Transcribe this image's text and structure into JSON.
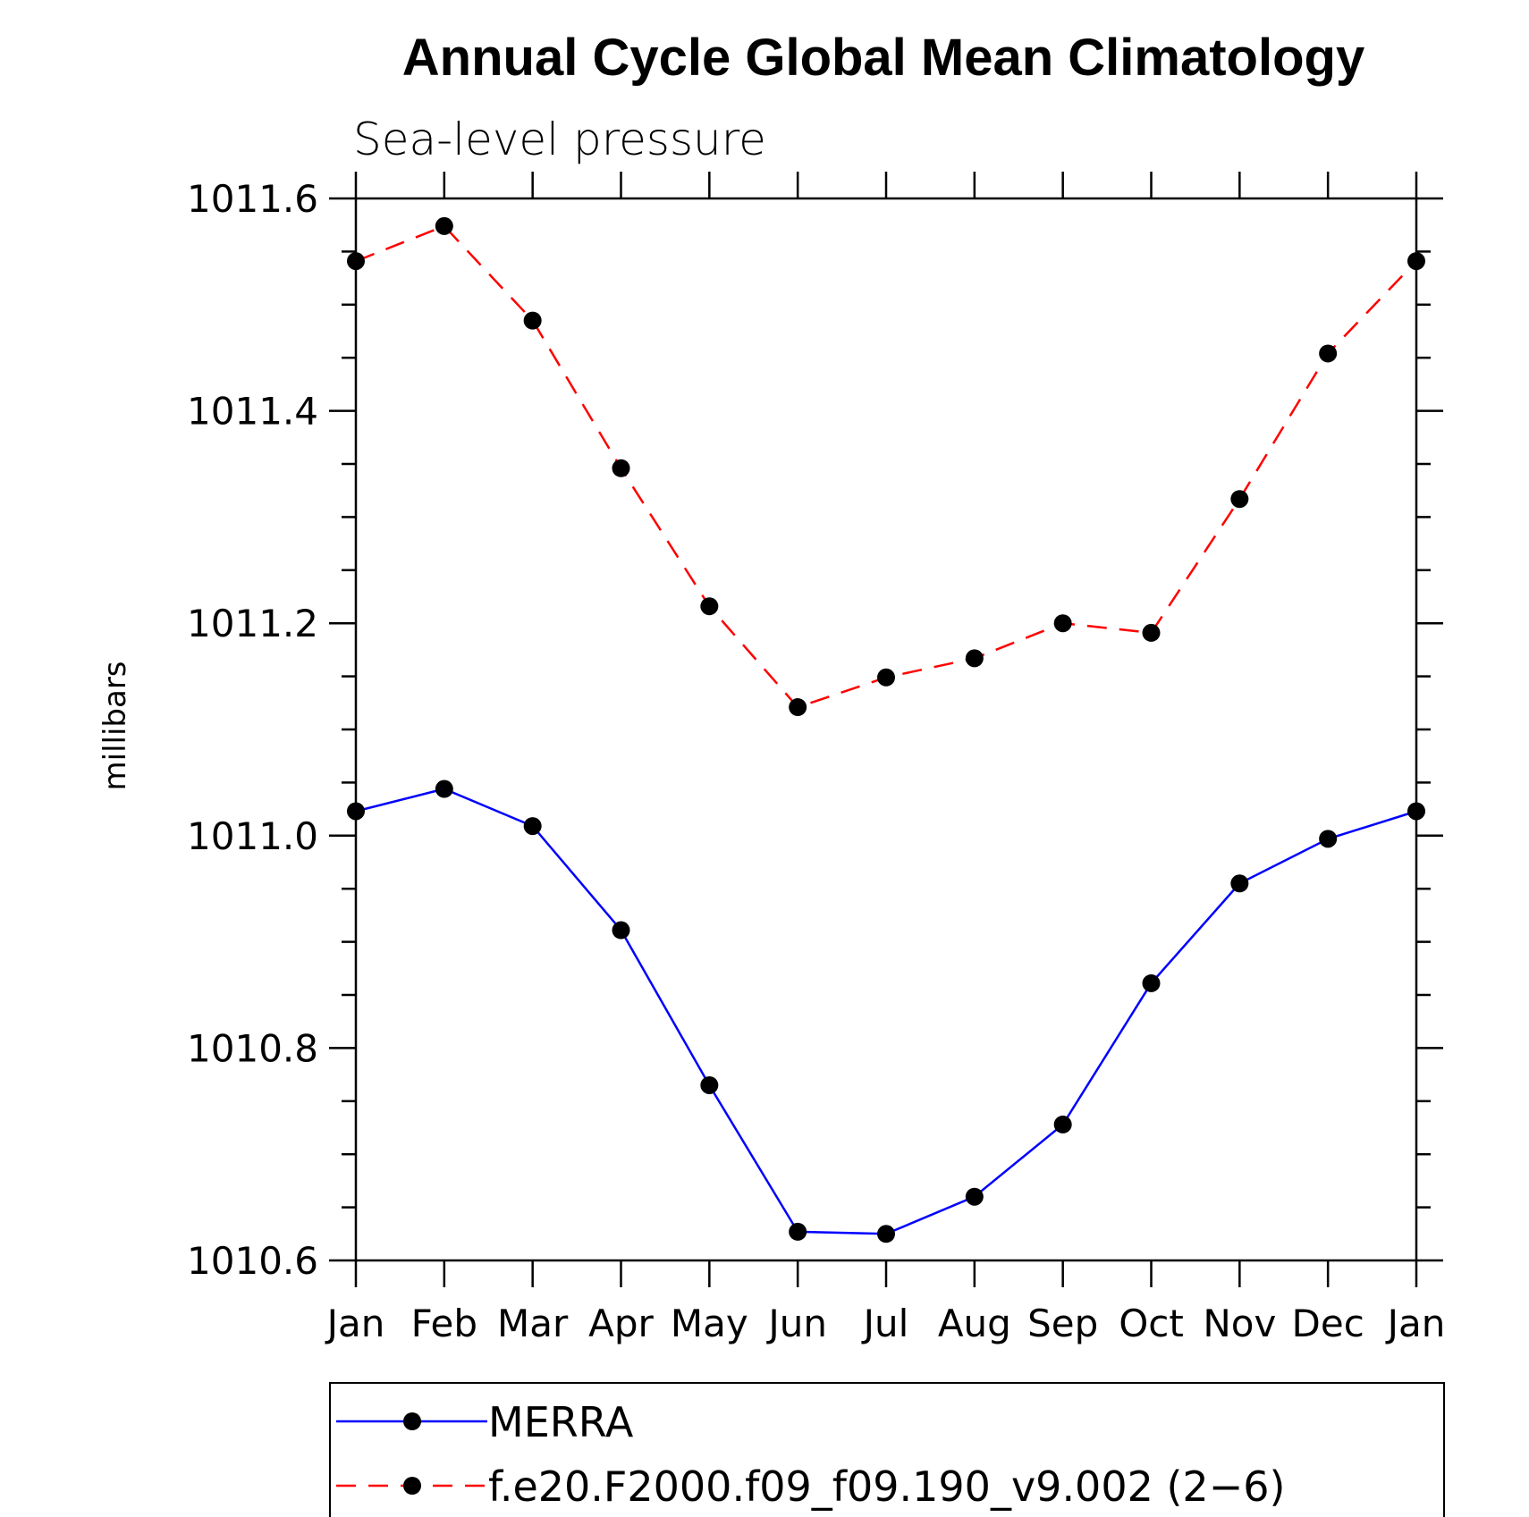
{
  "chart_data": {
    "type": "line",
    "title": "Annual Cycle Global Mean Climatology",
    "subtitle": "Sea-level pressure",
    "xlabel": "",
    "ylabel": "millibars",
    "categories": [
      "Jan",
      "Feb",
      "Mar",
      "Apr",
      "May",
      "Jun",
      "Jul",
      "Aug",
      "Sep",
      "Oct",
      "Nov",
      "Dec",
      "Jan"
    ],
    "ylim": [
      1010.6,
      1011.6
    ],
    "yticks": [
      "1010.6",
      "1010.8",
      "1011.0",
      "1011.2",
      "1011.4",
      "1011.6"
    ],
    "grid": false,
    "legend_position": "bottom",
    "series": [
      {
        "name": "MERRA",
        "color": "#0000ff",
        "line_style": "solid",
        "marker": "filled-circle",
        "values": [
          1011.023,
          1011.044,
          1011.009,
          1010.911,
          1010.765,
          1010.627,
          1010.625,
          1010.66,
          1010.728,
          1010.861,
          1010.955,
          1010.997,
          1011.023
        ]
      },
      {
        "name": "f.e20.F2000.f09_f09.190_v9.002 (2−6)",
        "color": "#ff0000",
        "line_style": "dashed",
        "marker": "filled-circle",
        "values": [
          1011.541,
          1011.574,
          1011.485,
          1011.346,
          1011.216,
          1011.121,
          1011.149,
          1011.167,
          1011.2,
          1011.191,
          1011.317,
          1011.454,
          1011.541
        ]
      }
    ]
  }
}
